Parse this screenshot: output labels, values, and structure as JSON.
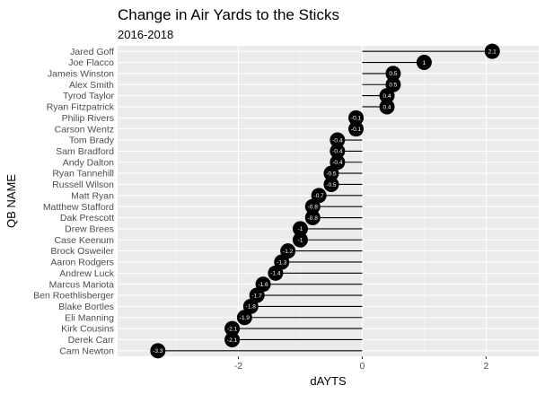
{
  "chart_data": {
    "type": "lollipop",
    "title": "Change in Air Yards to the Sticks",
    "subtitle": "2016-2018",
    "xlabel": "dAYTS",
    "ylabel": "QB NAME",
    "xlim": [
      -3.95,
      2.85
    ],
    "x_ticks": [
      -2,
      0,
      2
    ],
    "x_tick_labels": [
      "-2",
      "0",
      "2"
    ],
    "grid": true,
    "categories": [
      "Jared Goff",
      "Joe Flacco",
      "Jameis Winston",
      "Alex Smith",
      "Tyrod Taylor",
      "Ryan Fitzpatrick",
      "Philip Rivers",
      "Carson Wentz",
      "Tom Brady",
      "Sam Bradford",
      "Andy Dalton",
      "Ryan Tannehill",
      "Russell Wilson",
      "Matt Ryan",
      "Matthew Stafford",
      "Dak Prescott",
      "Drew Brees",
      "Case Keenum",
      "Brock Osweiler",
      "Aaron Rodgers",
      "Andrew Luck",
      "Marcus Mariota",
      "Ben Roethlisberger",
      "Blake Bortles",
      "Eli Manning",
      "Kirk Cousins",
      "Derek Carr",
      "Cam Newton"
    ],
    "values": [
      2.1,
      1,
      0.5,
      0.5,
      0.4,
      0.4,
      -0.1,
      -0.1,
      -0.4,
      -0.4,
      -0.4,
      -0.5,
      -0.5,
      -0.7,
      -0.8,
      -0.8,
      -1,
      -1,
      -1.2,
      -1.3,
      -1.4,
      -1.6,
      -1.7,
      -1.8,
      -1.9,
      -2.1,
      -2.1,
      -3.3
    ],
    "value_labels": [
      "2.1",
      "1",
      "0.5",
      "0.5",
      "0.4",
      "0.4",
      "-0.1",
      "-0.1",
      "-0.4",
      "-0.4",
      "-0.4",
      "-0.5",
      "-0.5",
      "-0.7",
      "-0.8",
      "-0.8",
      "-1",
      "-1",
      "-1.2",
      "-1.3",
      "-1.4",
      "-1.6",
      "-1.7",
      "-1.8",
      "-1.9",
      "-2.1",
      "-2.1",
      "-3.3"
    ],
    "colors": {
      "panel": "#ebebeb",
      "grid_major": "#ffffff",
      "grid_minor": "#f5f5f5",
      "point": "#000000",
      "segment": "#000000",
      "point_label": "#ffffff"
    }
  }
}
